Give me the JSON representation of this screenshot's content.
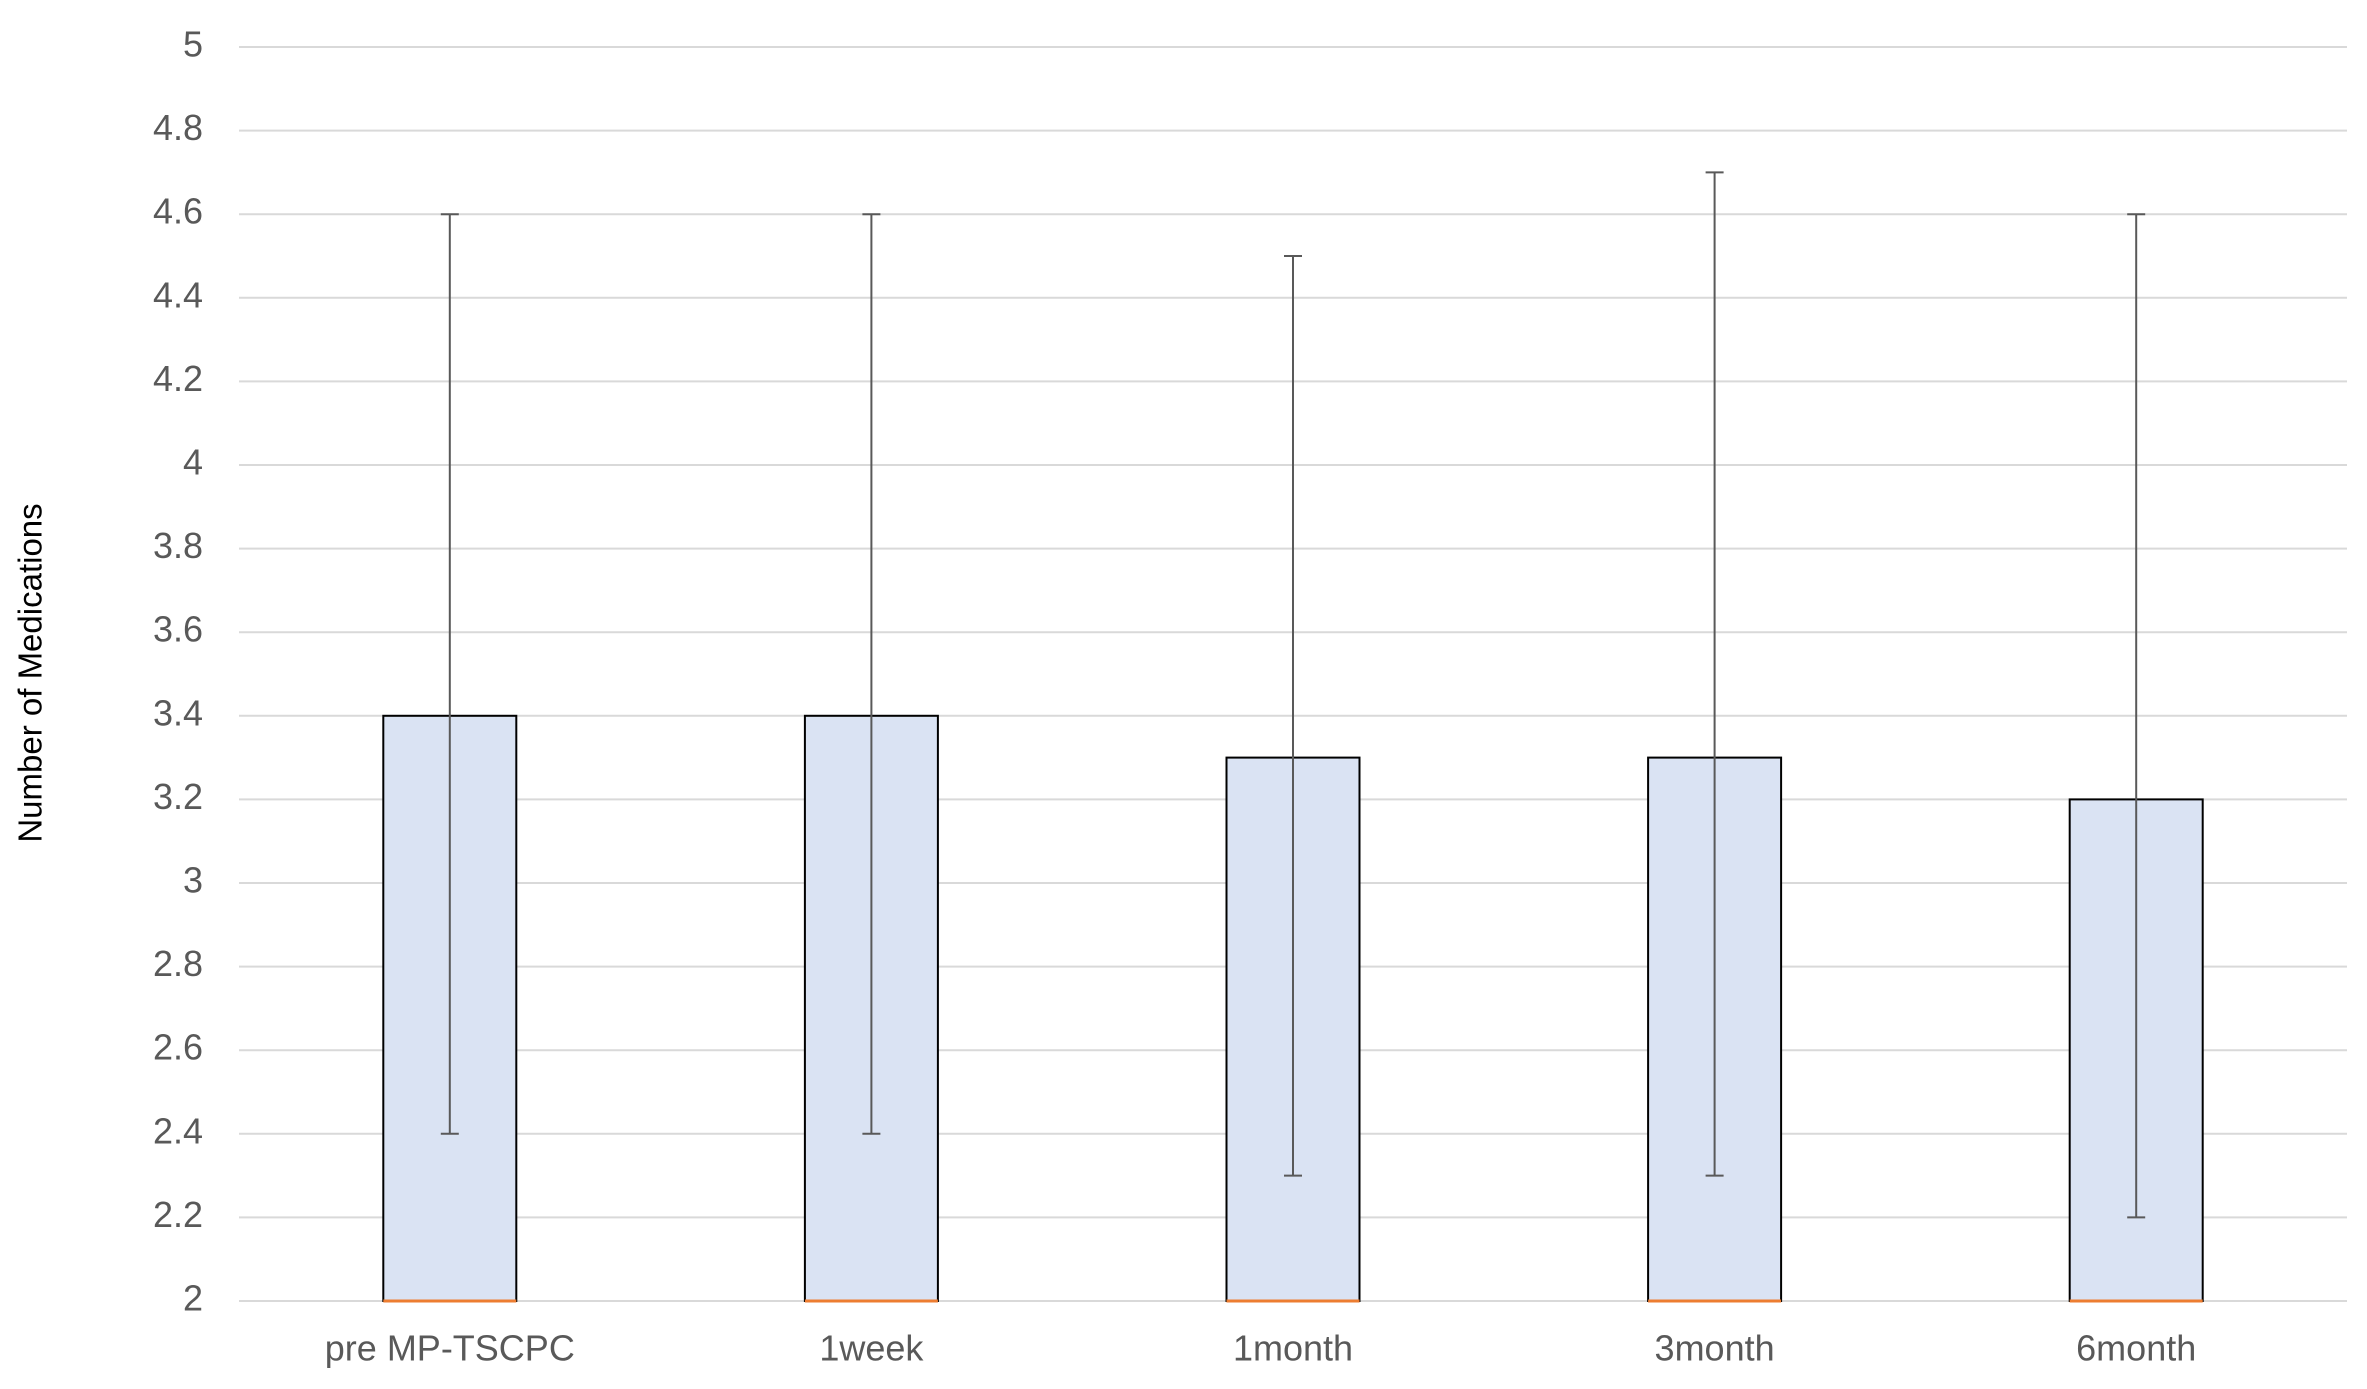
{
  "chart_data": {
    "type": "bar",
    "y_label": "Number of Medications",
    "categories": [
      "pre MP-TSCPC",
      "1week",
      "1month",
      "3month",
      "6month"
    ],
    "values": [
      3.4,
      3.4,
      3.3,
      3.3,
      3.2
    ],
    "error_minus": [
      1.0,
      1.0,
      1.0,
      1.0,
      1.0
    ],
    "error_plus": [
      1.2,
      1.2,
      1.2,
      1.4,
      1.4
    ],
    "color": "#dae3f3",
    "ylim": [
      2,
      5
    ],
    "yticks": [
      2,
      2.2,
      2.4,
      2.6,
      2.8,
      3,
      3.2,
      3.4,
      3.6,
      3.8,
      4,
      4.2,
      4.4,
      4.6,
      4.8,
      5
    ],
    "grid": true
  }
}
